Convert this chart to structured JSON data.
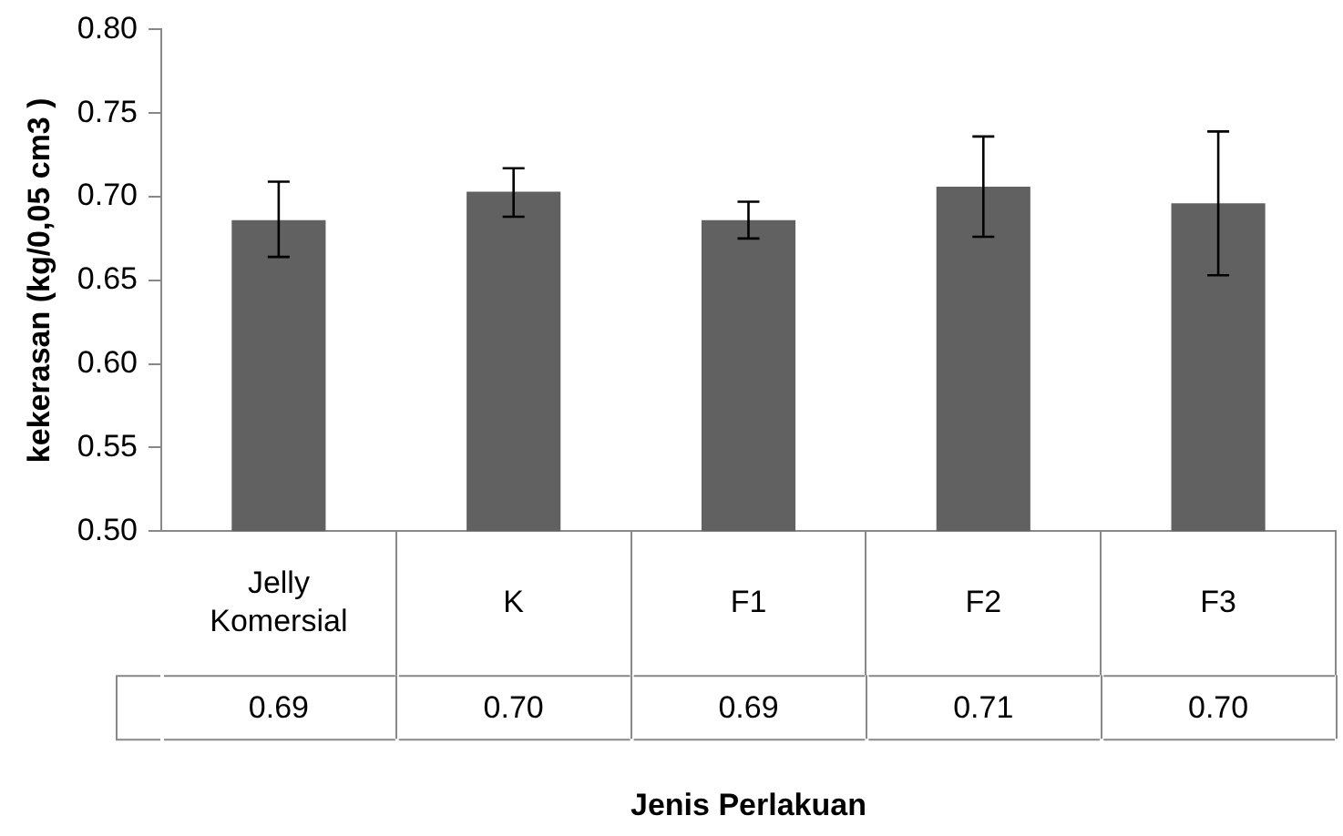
{
  "chart_data": {
    "type": "bar",
    "xlabel": "Jenis Perlakuan",
    "ylabel": "kekerasan (kg/0,05 cm3 )",
    "categories": [
      "Jelly Komersial",
      "K",
      "F1",
      "F2",
      "F3"
    ],
    "values": [
      0.686,
      0.703,
      0.686,
      0.706,
      0.696
    ],
    "value_labels": [
      "0.69",
      "0.70",
      "0.69",
      "0.71",
      "0.70"
    ],
    "errors": [
      [
        0.664,
        0.709
      ],
      [
        0.688,
        0.717
      ],
      [
        0.675,
        0.697
      ],
      [
        0.676,
        0.736
      ],
      [
        0.653,
        0.739
      ]
    ],
    "color": "#616161",
    "ylim": [
      0.5,
      0.8
    ],
    "yticks": [
      {
        "value": 0.5,
        "label": "0.50"
      },
      {
        "value": 0.55,
        "label": "0.55"
      },
      {
        "value": 0.6,
        "label": "0.60"
      },
      {
        "value": 0.65,
        "label": "0.65"
      },
      {
        "value": 0.7,
        "label": "0.70"
      },
      {
        "value": 0.75,
        "label": "0.75"
      },
      {
        "value": 0.8,
        "label": "0.80"
      }
    ],
    "grid": false,
    "legend": false
  }
}
